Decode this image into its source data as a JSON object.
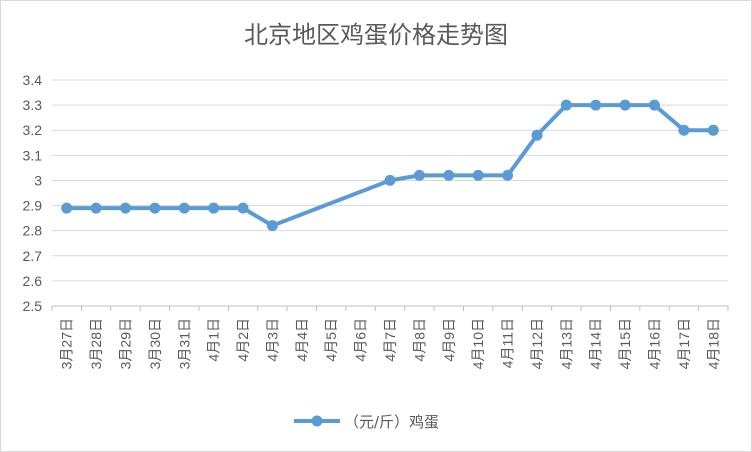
{
  "chart_data": {
    "type": "line",
    "title": "北京地区鸡蛋价格走势图",
    "xlabel": "",
    "ylabel": "",
    "ylim": [
      2.5,
      3.4
    ],
    "y_ticks": [
      "3.4",
      "3.3",
      "3.2",
      "3.1",
      "3",
      "2.9",
      "2.8",
      "2.7",
      "2.6",
      "2.5"
    ],
    "grid": true,
    "legend_position": "bottom",
    "categories": [
      "3月27日",
      "3月28日",
      "3月29日",
      "3月30日",
      "3月31日",
      "4月1日",
      "4月2日",
      "4月3日",
      "4月4日",
      "4月5日",
      "4月6日",
      "4月7日",
      "4月8日",
      "4月9日",
      "4月10日",
      "4月11日",
      "4月12日",
      "4月13日",
      "4月14日",
      "4月15日",
      "4月16日",
      "4月17日",
      "4月18日"
    ],
    "series": [
      {
        "name": "（元/斤）鸡蛋",
        "color": "#5b9bd5",
        "values": [
          2.89,
          2.89,
          2.89,
          2.89,
          2.89,
          2.89,
          2.89,
          2.82,
          null,
          null,
          null,
          3.0,
          3.02,
          3.02,
          3.02,
          3.02,
          3.18,
          3.3,
          3.3,
          3.3,
          3.3,
          3.2,
          3.2
        ]
      }
    ]
  }
}
